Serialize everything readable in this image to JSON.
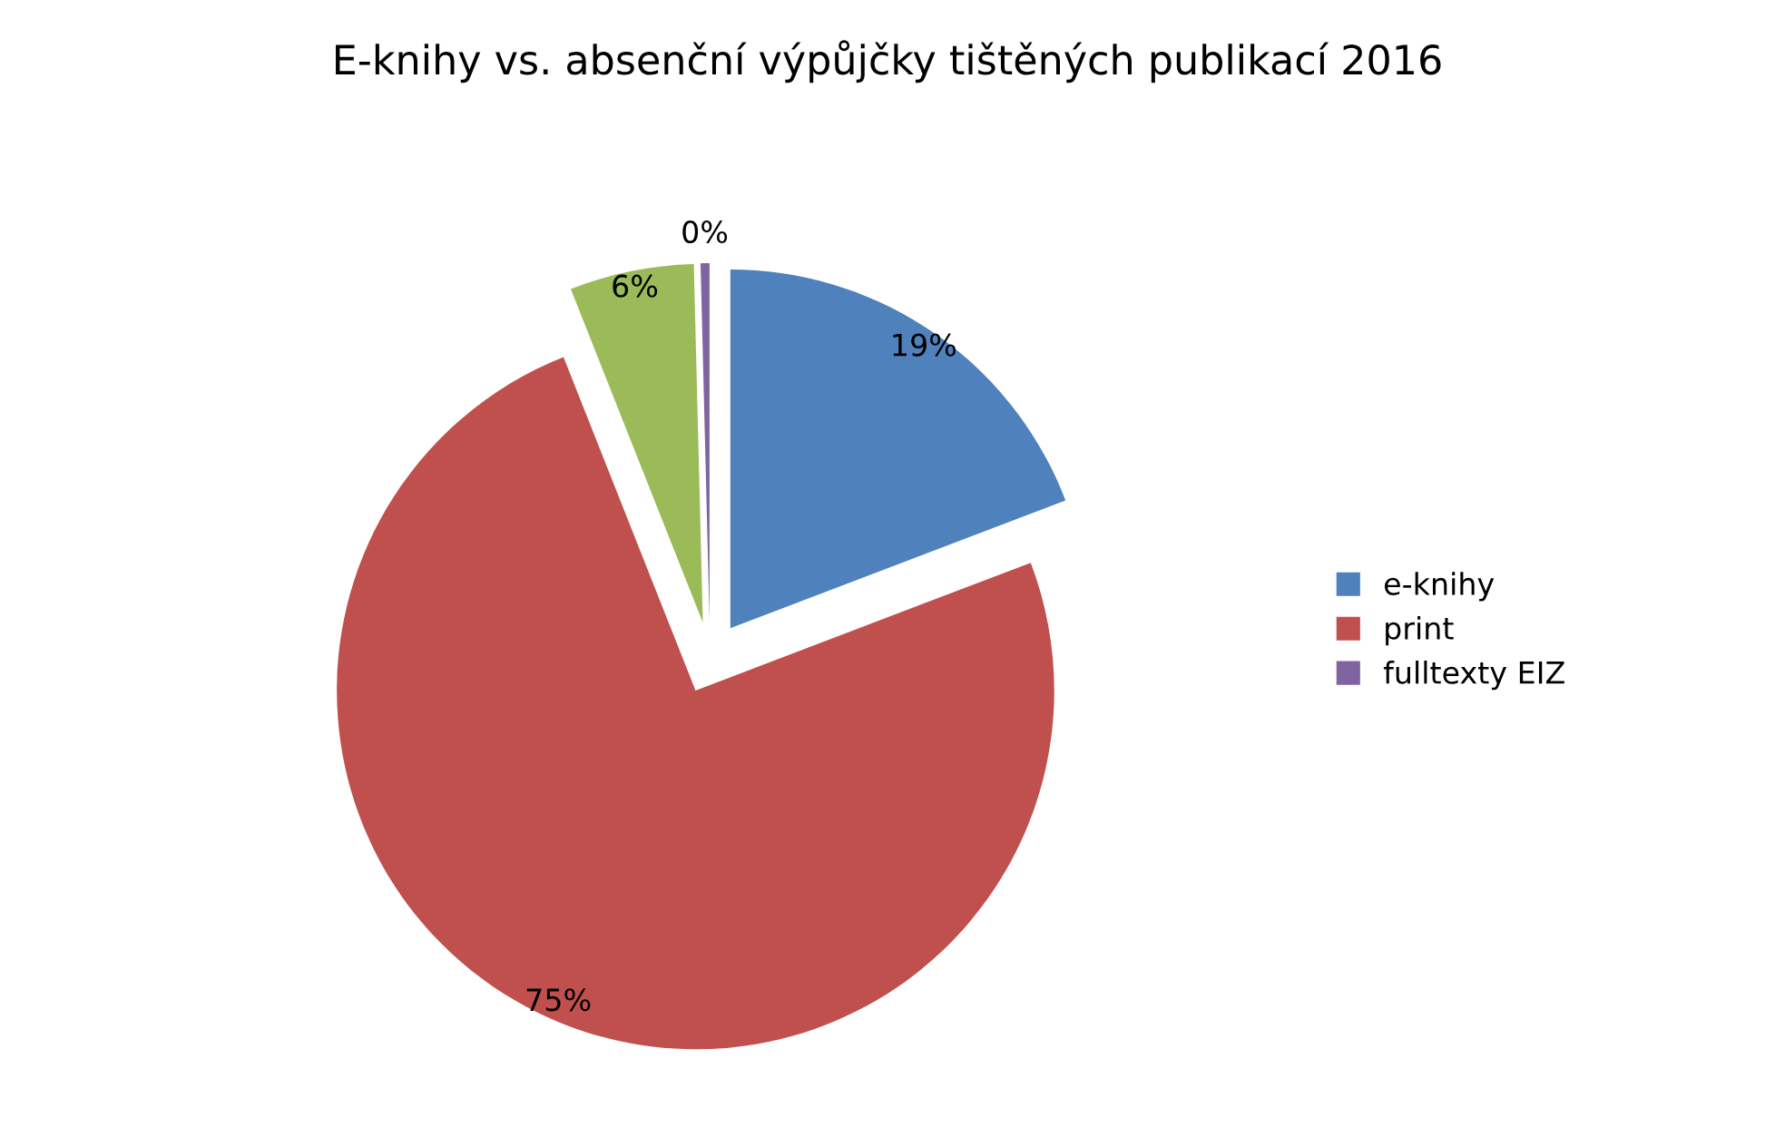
{
  "chart_data": {
    "type": "pie",
    "title": "E-knihy vs. absenční výpůjčky tištěných publikací 2016",
    "categories": [
      "e-knihy",
      "print",
      null,
      "fulltexty EIZ"
    ],
    "values": [
      19.2,
      74.8,
      5.6,
      0.4
    ],
    "value_labels": [
      "19%",
      "75%",
      "6%",
      "0%"
    ],
    "colors": [
      "#4f81bd",
      "#c0504d",
      "#9bbb59",
      "#8064a2"
    ],
    "legend": "right"
  }
}
